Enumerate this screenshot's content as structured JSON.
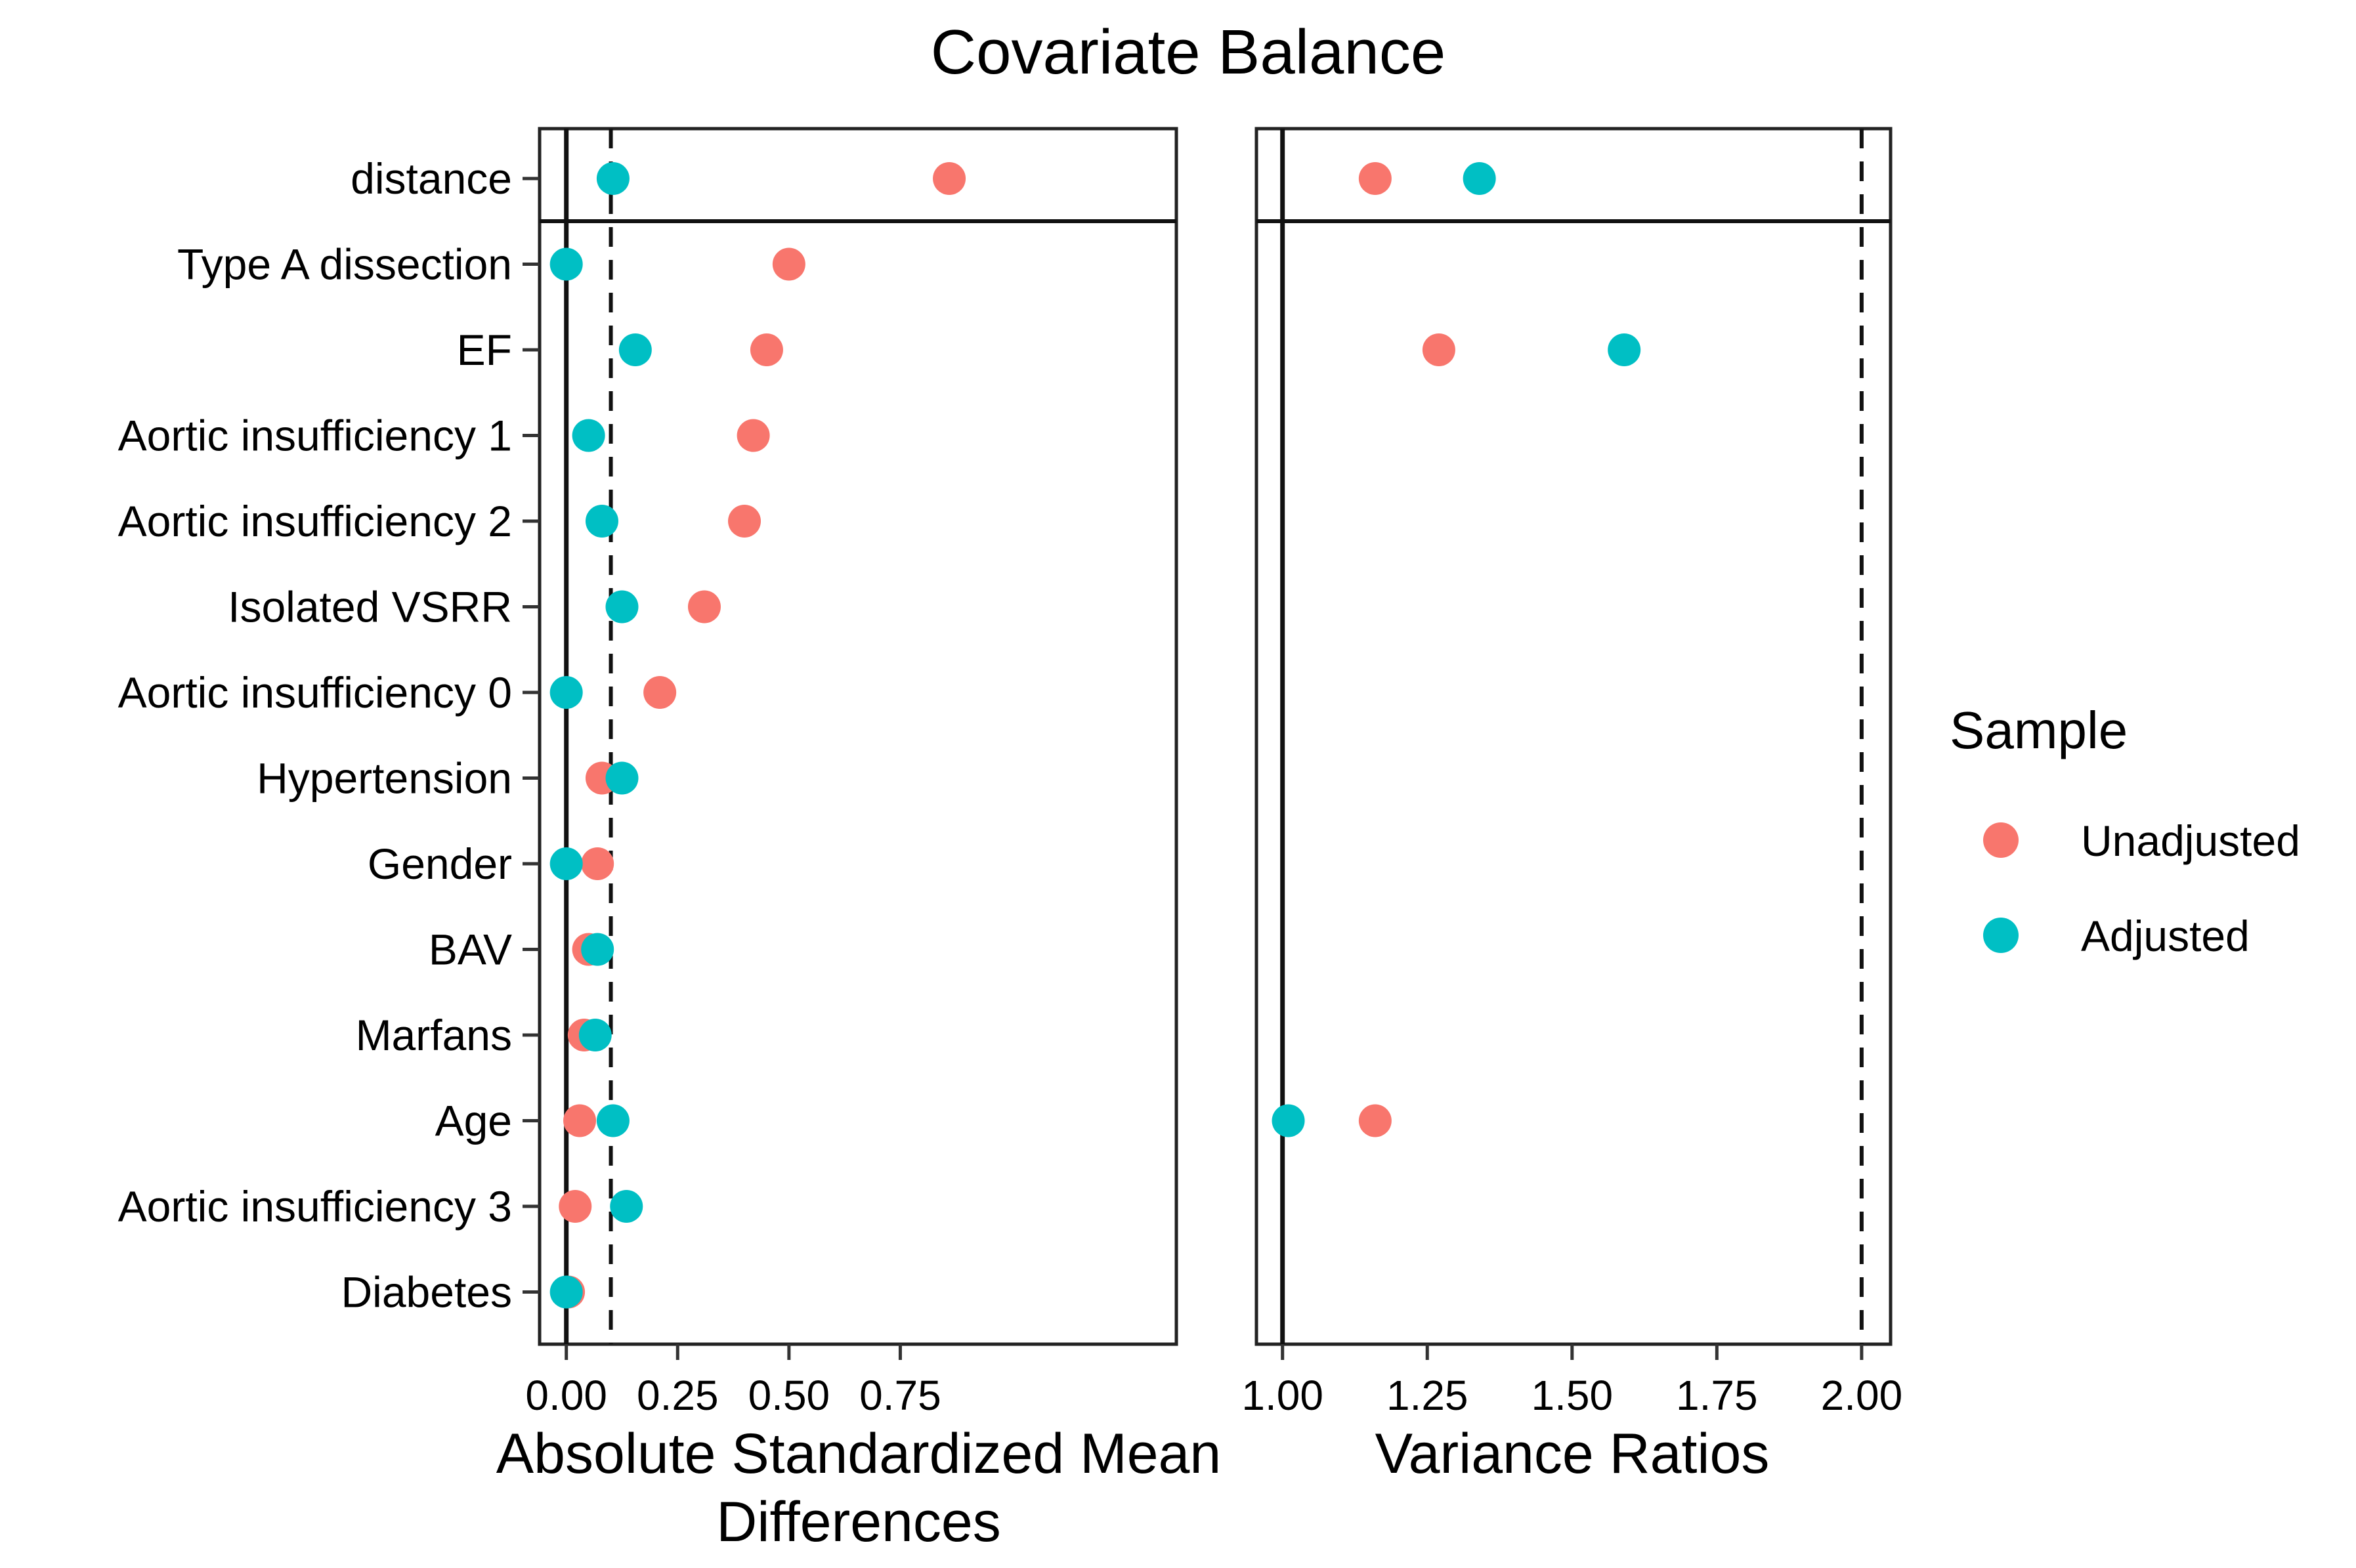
{
  "chart_data": {
    "type": "scatter",
    "title": "Covariate Balance",
    "categories": [
      "distance",
      "Type  A  dissection",
      "EF",
      "Aortic  insufficiency  1",
      "Aortic  insufficiency  2",
      "Isolated  VSRR",
      "Aortic  insufficiency  0",
      "Hypertension",
      "Gender",
      "BAV",
      "Marfans",
      "Age",
      "Aortic  insufficiency  3",
      "Diabetes"
    ],
    "panels": [
      {
        "xlabel": "Absolute Standardized Mean Differences",
        "xlim": [
          -0.06,
          1.37
        ],
        "xticks": [
          0.0,
          0.25,
          0.5,
          0.75
        ],
        "xtick_labels": [
          "0.00",
          "0.25",
          "0.50",
          "0.75"
        ],
        "reference_line": 0.0,
        "threshold_line": 0.1,
        "series": [
          {
            "name": "Unadjusted",
            "values": [
              0.86,
              0.5,
              0.45,
              0.42,
              0.4,
              0.31,
              0.21,
              0.08,
              0.07,
              0.05,
              0.04,
              0.03,
              0.02,
              0.005
            ]
          },
          {
            "name": "Adjusted",
            "values": [
              0.105,
              0.0,
              0.155,
              0.05,
              0.08,
              0.125,
              0.0,
              0.125,
              0.0,
              0.07,
              0.065,
              0.105,
              0.135,
              0.0
            ]
          }
        ]
      },
      {
        "xlabel": "Variance Ratios",
        "xlim": [
          0.955,
          2.05
        ],
        "xticks": [
          1.0,
          1.25,
          1.5,
          1.75,
          2.0
        ],
        "xtick_labels": [
          "1.00",
          "1.25",
          "1.50",
          "1.75",
          "2.00"
        ],
        "reference_line": 1.0,
        "threshold_line": 2.0,
        "series": [
          {
            "name": "Unadjusted",
            "values": [
              1.16,
              null,
              1.27,
              null,
              null,
              null,
              null,
              null,
              null,
              null,
              null,
              1.16,
              null,
              null
            ]
          },
          {
            "name": "Adjusted",
            "values": [
              1.34,
              null,
              1.59,
              null,
              null,
              null,
              null,
              null,
              null,
              null,
              null,
              1.01,
              null,
              null
            ]
          }
        ]
      }
    ],
    "legend": {
      "title": "Sample",
      "position": "right",
      "entries": [
        "Unadjusted",
        "Adjusted"
      ]
    },
    "colors": {
      "Unadjusted": "#F8766D",
      "Adjusted": "#00BFC4"
    },
    "grid": false
  }
}
